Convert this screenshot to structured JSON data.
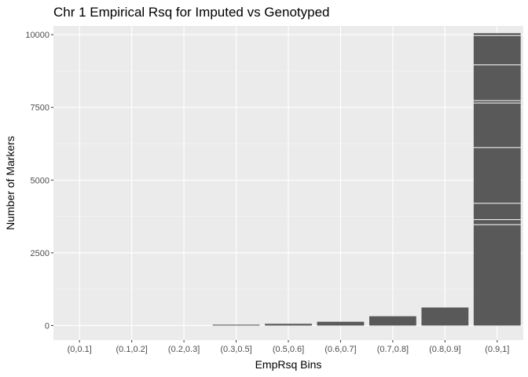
{
  "chart_data": {
    "type": "bar",
    "title": "Chr 1 Empirical Rsq for Imputed vs Genotyped",
    "xlabel": "EmpRsq Bins",
    "ylabel": "Number of Markers",
    "categories": [
      "(0,0.1]",
      "(0.1,0.2]",
      "(0.2,0.3]",
      "(0.3,0.5]",
      "(0.5,0.6]",
      "(0.6,0.7]",
      "(0.7,0.8]",
      "(0.8,0.9]",
      "(0.9,1]"
    ],
    "values": [
      0,
      0,
      0,
      30,
      60,
      130,
      320,
      620,
      10050
    ],
    "segments": [
      [],
      [],
      [],
      [],
      [],
      [],
      [],
      [],
      [
        3470,
        3640,
        4200,
        6120,
        7650,
        7730,
        8960,
        9970
      ]
    ],
    "ylim": [
      -500,
      10300
    ],
    "yticks": [
      0,
      2500,
      5000,
      7500,
      10000
    ],
    "grid": true,
    "colors": {
      "bar": "#595959",
      "panel": "#ebebeb",
      "grid_major": "#ffffff",
      "grid_minor": "#f5f5f5",
      "segment_line": "#ffffff",
      "tick": "#333333"
    }
  }
}
